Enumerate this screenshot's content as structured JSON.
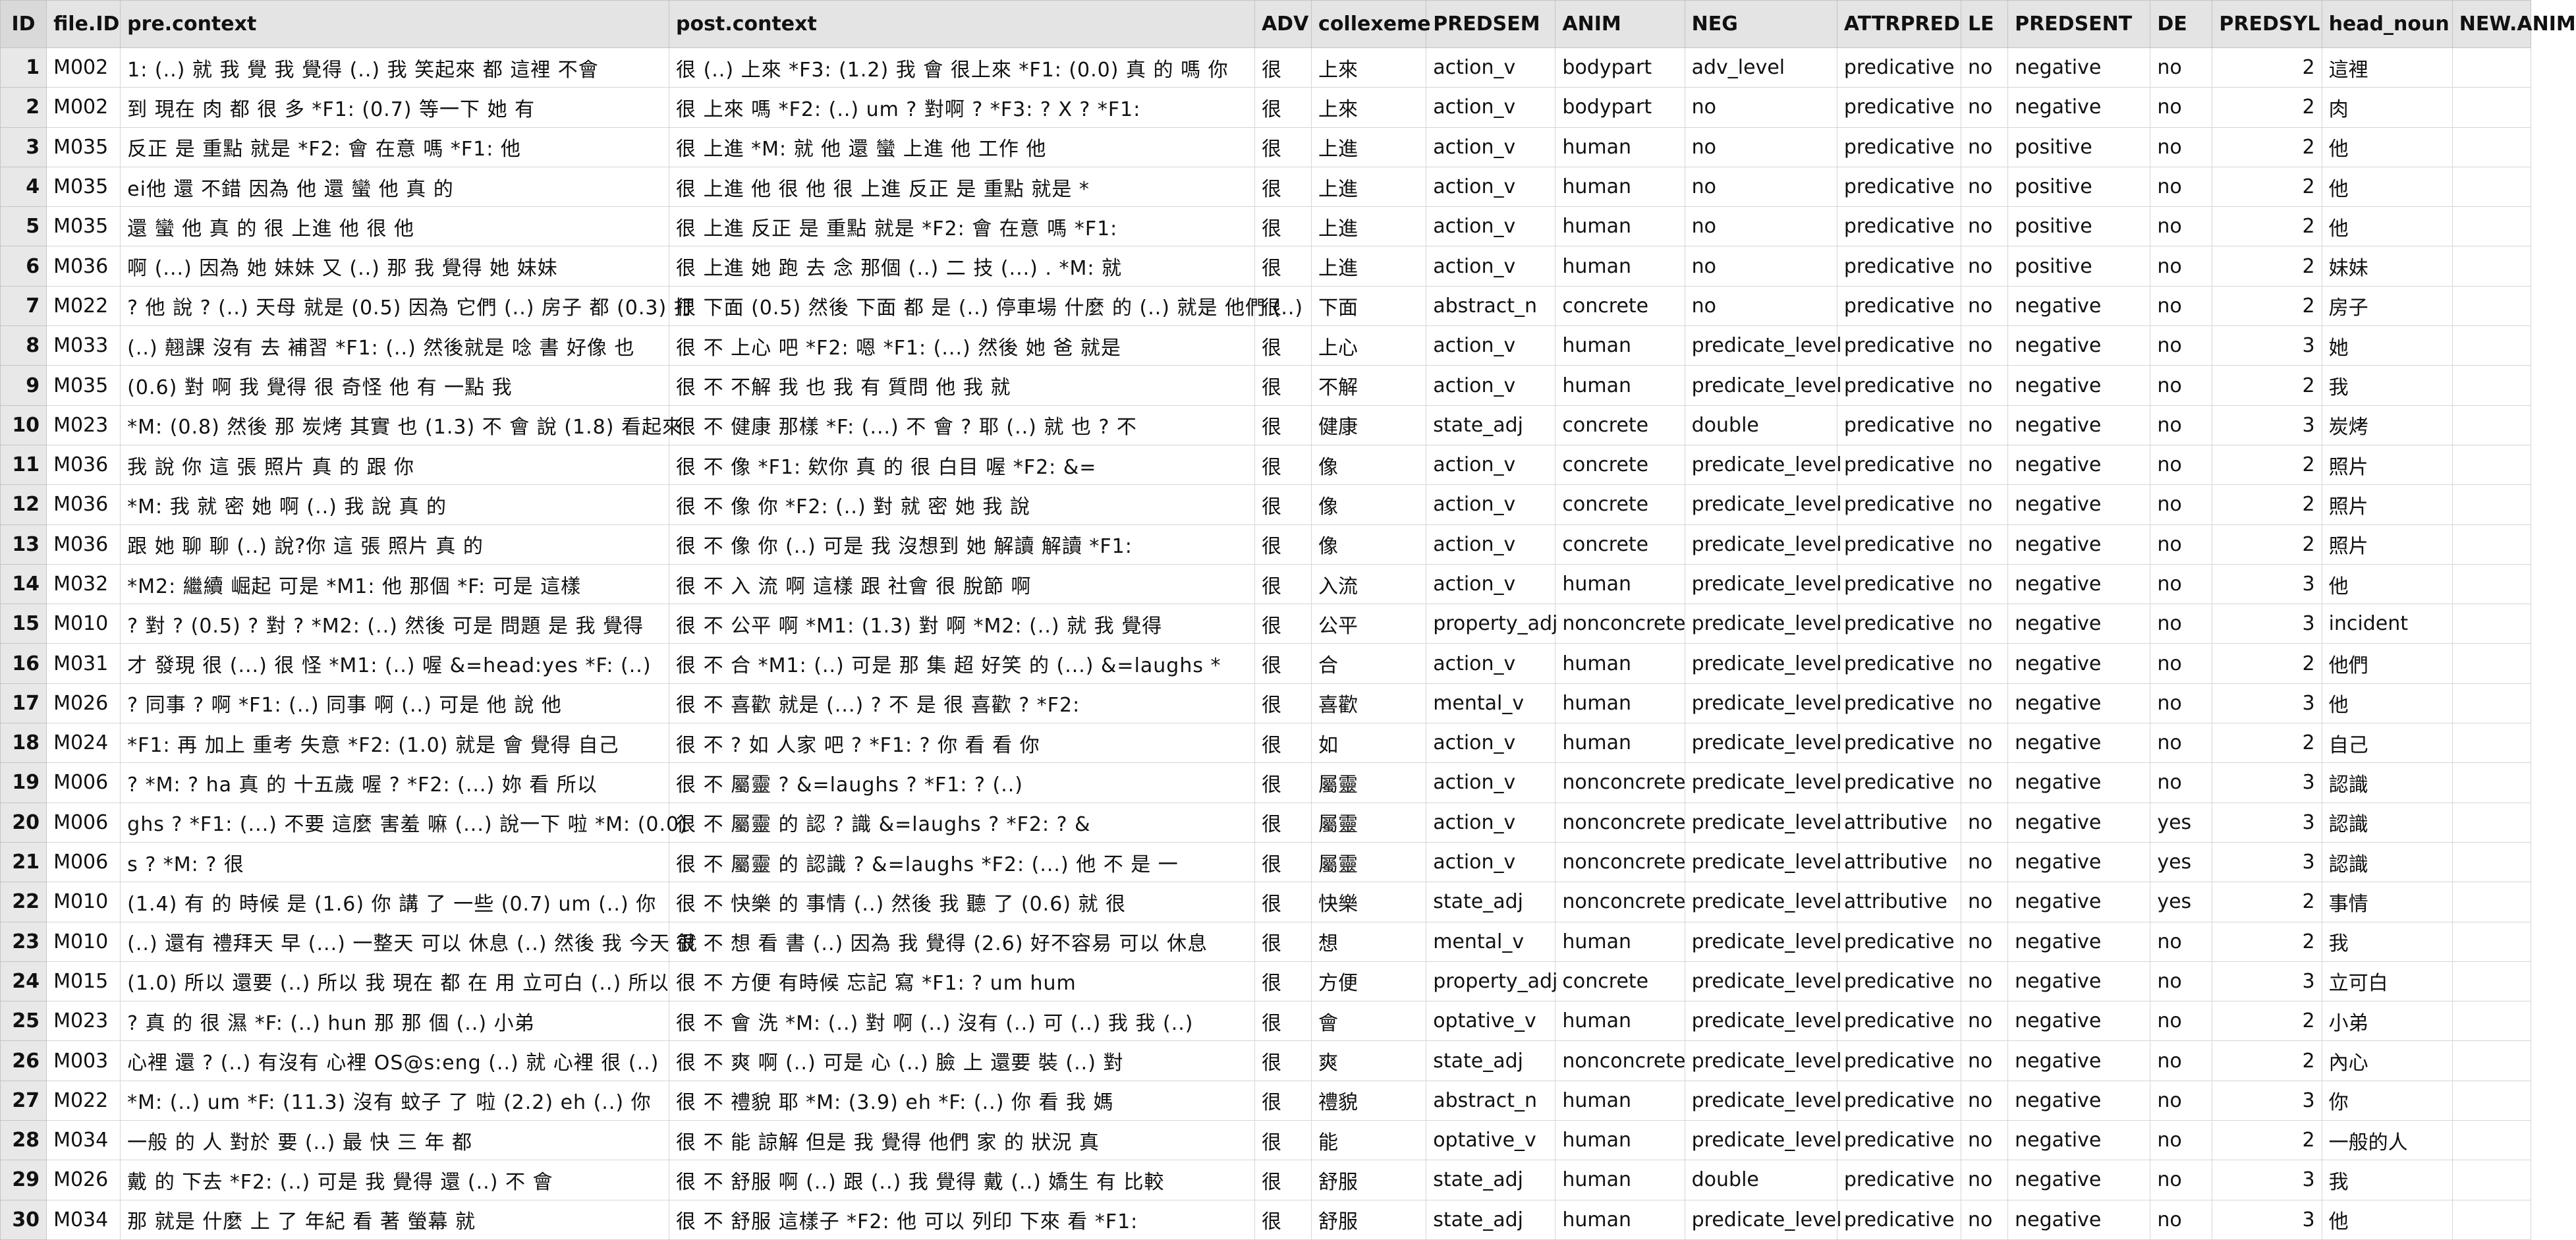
{
  "headers": [
    "ID",
    "file.ID",
    "pre.context",
    "post.context",
    "ADV",
    "collexeme",
    "PREDSEM",
    "ANIM",
    "NEG",
    "ATTRPRED",
    "LE",
    "PREDSENT",
    "DE",
    "PREDSYL",
    "head_noun",
    "NEW.ANIM"
  ],
  "rows": [
    [
      "1",
      "M002",
      "1: (..) 就 我 覺 我 覺得 (..) 我 笑起來 都 這裡 不會",
      "很 (..) 上來 *F3: (1.2) 我 會 很上來 *F1: (0.0) 真 的 嗎 你",
      "很",
      "上來",
      "action_v",
      "bodypart",
      "adv_level",
      "predicative",
      "no",
      "negative",
      "no",
      "2",
      "這裡",
      ""
    ],
    [
      "2",
      "M002",
      "到 現在 肉 都 很 多 *F1: (0.7) 等一下 她 有",
      "很 上來 嗎 *F2: (..) um ? 對啊 ? *F3:        ? X ? *F1:",
      "很",
      "上來",
      "action_v",
      "bodypart",
      "no",
      "predicative",
      "no",
      "negative",
      "no",
      "2",
      "肉",
      ""
    ],
    [
      "3",
      "M035",
      "反正 是 重點 就是 *F2: 會 在意 嗎 *F1: 他",
      "很 上進 *M: 就 他 還 蠻 上進 他 工作 他",
      "很",
      "上進",
      "action_v",
      "human",
      "no",
      "predicative",
      "no",
      "positive",
      "no",
      "2",
      "他",
      ""
    ],
    [
      "4",
      "M035",
      "  ei他 還 不錯 因為 他 還 蠻 他 真 的",
      "很 上進 他 很 他 很 上進 反正 是 重點 就是 *",
      "很",
      "上進",
      "action_v",
      "human",
      "no",
      "predicative",
      "no",
      "positive",
      "no",
      "2",
      "他",
      ""
    ],
    [
      "5",
      "M035",
      "  還 蠻 他 真 的 很 上進 他 很 他",
      "很 上進 反正 是 重點 就是 *F2: 會 在意 嗎 *F1:",
      "很",
      "上進",
      "action_v",
      "human",
      "no",
      "predicative",
      "no",
      "positive",
      "no",
      "2",
      "他",
      ""
    ],
    [
      "6",
      "M036",
      "  啊 (...) 因為 她 妹妹 又 (..) 那 我 覺得 她 妹妹",
      "很 上進 她 跑 去 念 那個 (..) 二 技 (...) . *M: 就",
      "很",
      "上進",
      "action_v",
      "human",
      "no",
      "predicative",
      "no",
      "positive",
      "no",
      "2",
      "妹妹",
      ""
    ],
    [
      "7",
      "M022",
      "? 他 說 ? (..) 天母 就是 (0.5) 因為 它們 (..) 房子 都 (0.3) 打",
      "很 下面 (0.5) 然後  下面 都 是 (..) 停車場 什麼 的 (..) 就是 他們 (..)",
      "很",
      "下面",
      "abstract_n",
      "concrete",
      "no",
      "predicative",
      "no",
      "negative",
      "no",
      "2",
      "房子",
      ""
    ],
    [
      "8",
      "M033",
      "(..) 翹課 沒有 去 補習 *F1: (..) 然後就是 唸 書 好像 也",
      "很 不 上心 吧 *F2: 嗯 *F1: (...) 然後 她 爸 就是",
      "很",
      "上心",
      "action_v",
      "human",
      "predicate_level",
      "predicative",
      "no",
      "negative",
      "no",
      "3",
      "她",
      ""
    ],
    [
      "9",
      "M035",
      "(0.6) 對 啊 我 覺得 很 奇怪 他 有 一點 我",
      "很 不 不解 我 也 我 有 質問 他 我  就",
      "很",
      "不解",
      "action_v",
      "human",
      "predicate_level",
      "predicative",
      "no",
      "negative",
      "no",
      "2",
      "我",
      ""
    ],
    [
      "10",
      "M023",
      "*M: (0.8) 然後 那 炭烤 其實 也 (1.3) 不 會 說 (1.8) 看起來",
      "很 不 健康 那樣 *F: (...) 不 會 ? 耶 (..) 就 也 ? 不",
      "很",
      "健康",
      "state_adj",
      "concrete",
      "double",
      "predicative",
      "no",
      "negative",
      "no",
      "3",
      "炭烤",
      ""
    ],
    [
      "11",
      "M036",
      "  我 說 你 這 張 照片 真 的 跟 你",
      "很 不 像 *F1: 欸你 真 的 很 白目 喔 *F2: &=",
      "很",
      "像",
      "action_v",
      "concrete",
      "predicate_level",
      "predicative",
      "no",
      "negative",
      "no",
      "2",
      "照片",
      ""
    ],
    [
      "12",
      "M036",
      "  *M: 我 就 密 她 啊 (..) 我 說 真 的",
      "很 不 像 你 *F2: (..) 對 就 密 她 我 說",
      "很",
      "像",
      "action_v",
      "concrete",
      "predicate_level",
      "predicative",
      "no",
      "negative",
      "no",
      "2",
      "照片",
      ""
    ],
    [
      "13",
      "M036",
      "  跟 她 聊 聊 (..) 說?你 這 張 照片 真 的",
      "很 不 像 你 (..) 可是 我 沒想到 她 解讀  解讀 *F1:",
      "很",
      "像",
      "action_v",
      "concrete",
      "predicate_level",
      "predicative",
      "no",
      "negative",
      "no",
      "2",
      "照片",
      ""
    ],
    [
      "14",
      "M032",
      "*M2: 繼續 崛起 可是 *M1: 他 那個 *F: 可是 這樣",
      "很 不 入 流 啊 這樣 跟 社會 很 脫節 啊",
      "很",
      "入流",
      "action_v",
      "human",
      "predicate_level",
      "predicative",
      "no",
      "negative",
      "no",
      "3",
      "他",
      ""
    ],
    [
      "15",
      "M010",
      "? 對 ? (0.5) ? 對 ? *M2: (..) 然後 可是 問題 是 我 覺得",
      "很 不 公平 啊 *M1: (1.3) 對 啊 *M2: (..) 就 我 覺得",
      "很",
      "公平",
      "property_adj",
      "nonconcrete",
      "predicate_level",
      "predicative",
      "no",
      "negative",
      "no",
      "3",
      "incident",
      ""
    ],
    [
      "16",
      "M031",
      "才 發現 很 (...) 很 怪 *M1: (..) 喔 &=head:yes *F: (..)",
      "很 不 合 *M1: (..) 可是 那 集 超 好笑 的 (...) &=laughs *",
      "很",
      "合",
      "action_v",
      "human",
      "predicate_level",
      "predicative",
      "no",
      "negative",
      "no",
      "2",
      "他們",
      ""
    ],
    [
      "17",
      "M026",
      "? 同事 ? 啊 *F1: (..) 同事 啊 (..) 可是 他 說 他",
      "很 不 喜歡 就是 (...) ? 不 是 很 喜歡 ? *F2:",
      "很",
      "喜歡",
      "mental_v",
      "human",
      "predicate_level",
      "predicative",
      "no",
      "negative",
      "no",
      "3",
      "他",
      ""
    ],
    [
      "18",
      "M024",
      "*F1: 再 加上 重考 失意 *F2: (1.0) 就是 會 覺得 自己",
      "很 不 ? 如 人家 吧 ? *F1:              ? 你 看 看 你",
      "很",
      "如",
      "action_v",
      "human",
      "predicate_level",
      "predicative",
      "no",
      "negative",
      "no",
      "2",
      "自己",
      ""
    ],
    [
      "19",
      "M006",
      "? *M:      ? ha 真 的 十五歲 喔 ? *F2: (...) 妳 看 所以",
      "很 不 屬靈 ? &=laughs ? *F1:              ? (..)",
      "很",
      "屬靈",
      "action_v",
      "nonconcrete",
      "predicate_level",
      "predicative",
      "no",
      "negative",
      "no",
      "3",
      "認識",
      ""
    ],
    [
      "20",
      "M006",
      "ghs ? *F1: (...) 不要 這麼 害羞 嘛 (...) 說一下 啦 *M: (0.0)",
      "很 不 屬靈 的 認 ? 識 &=laughs ? *F2:            ? &",
      "很",
      "屬靈",
      "action_v",
      "nonconcrete",
      "predicate_level",
      "attributive",
      "no",
      "negative",
      "yes",
      "3",
      "認識",
      ""
    ],
    [
      "21",
      "M006",
      "  s ? *M:                          ? 很",
      "很 不 屬靈 的 認識 ? &=laughs *F2: (...) 他 不 是 一",
      "很",
      "屬靈",
      "action_v",
      "nonconcrete",
      "predicate_level",
      "attributive",
      "no",
      "negative",
      "yes",
      "3",
      "認識",
      ""
    ],
    [
      "22",
      "M010",
      "(1.4) 有 的 時候 是 (1.6) 你  講 了 一些 (0.7) um (..) 你",
      "很 不 快樂 的 事情 (..) 然後 我 聽 了 (0.6) 就 很",
      "很",
      "快樂",
      "state_adj",
      "nonconcrete",
      "predicate_level",
      "attributive",
      "no",
      "negative",
      "yes",
      "2",
      "事情",
      ""
    ],
    [
      "23",
      "M010",
      "  (..) 還有 禮拜天 早 (...) 一整天 可以 休息 (..)  然後 我 今天 就",
      "很 不 想 看 書 (..) 因為 我 覺得 (2.6) 好不容易 可以 休息",
      "很",
      "想",
      "mental_v",
      "human",
      "predicate_level",
      "predicative",
      "no",
      "negative",
      "no",
      "2",
      "我",
      ""
    ],
    [
      "24",
      "M015",
      "(1.0) 所以 還要 (..) 所以 我 現在 都 在 用 立可白  (..) 所以",
      "很 不 方便 有時候 忘記 寫 *F1:                  ? um hum",
      "很",
      "方便",
      "property_adj",
      "concrete",
      "predicate_level",
      "predicative",
      "no",
      "negative",
      "no",
      "3",
      "立可白",
      ""
    ],
    [
      "25",
      "M023",
      "  ? 真 的 很 濕 *F: (..) hun 那 那 個 (..) 小弟",
      "很 不 會 洗 *M: (..) 對 啊 (..) 沒有 (..) 可 (..) 我 我 (..)",
      "很",
      "會",
      "optative_v",
      "human",
      "predicate_level",
      "predicative",
      "no",
      "negative",
      "no",
      "2",
      "小弟",
      ""
    ],
    [
      "26",
      "M003",
      "  心裡 還 ? (..) 有沒有 心裡 OS@s:eng (..) 就 心裡 很 (..)",
      "很 不 爽 啊 (..) 可是 心  (..) 臉 上 還要 裝 (..) 對",
      "很",
      "爽",
      "state_adj",
      "nonconcrete",
      "predicate_level",
      "predicative",
      "no",
      "negative",
      "no",
      "2",
      "內心",
      ""
    ],
    [
      "27",
      "M022",
      "*M: (..) um *F: (11.3) 沒有 蚊子 了 啦 (2.2) eh (..) 你",
      "很 不 禮貌 耶 *M: (3.9) eh *F: (..) 你 看 我 媽",
      "很",
      "禮貌",
      "abstract_n",
      "human",
      "predicate_level",
      "predicative",
      "no",
      "negative",
      "no",
      "3",
      "你",
      ""
    ],
    [
      "28",
      "M034",
      "  一般 的 人 對於 要 (..) 最 快 三 年 都",
      "很 不 能 諒解 但是 我 覺得 他們 家 的 狀況 真",
      "很",
      "能",
      "optative_v",
      "human",
      "predicate_level",
      "predicative",
      "no",
      "negative",
      "no",
      "2",
      "一般的人",
      ""
    ],
    [
      "29",
      "M026",
      "戴 的 下去 *F2: (..) 可是 我 覺得 還 (..) 不 會",
      "很 不 舒服 啊 (..) 跟 (..) 我 覺得 戴 (..) 嬌生 有 比較",
      "很",
      "舒服",
      "state_adj",
      "human",
      "double",
      "predicative",
      "no",
      "negative",
      "no",
      "3",
      "我",
      ""
    ],
    [
      "30",
      "M034",
      "  那 就是 什麼 上 了 年紀 看 著 螢幕 就",
      "很 不 舒服  這樣子 *F2: 他 可以 列印 下來 看 *F1:",
      "很",
      "舒服",
      "state_adj",
      "human",
      "predicate_level",
      "predicative",
      "no",
      "negative",
      "no",
      "3",
      "他",
      ""
    ]
  ]
}
